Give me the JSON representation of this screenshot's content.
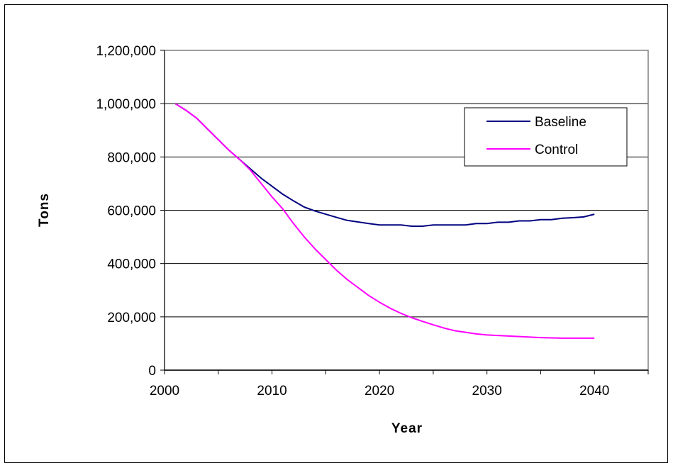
{
  "chart_data": {
    "type": "line",
    "title": "",
    "xlabel": "Year",
    "ylabel": "Tons",
    "xlim": [
      2000,
      2045
    ],
    "ylim": [
      0,
      1200000
    ],
    "x_ticks": [
      2000,
      2010,
      2020,
      2030,
      2040
    ],
    "x_tick_labels": [
      "2000",
      "2010",
      "2020",
      "2030",
      "2040"
    ],
    "y_ticks": [
      0,
      200000,
      400000,
      600000,
      800000,
      1000000,
      1200000
    ],
    "y_tick_labels": [
      "0",
      "200,000",
      "400,000",
      "600,000",
      "800,000",
      "1,000,000",
      "1,200,000"
    ],
    "grid": "horizontal",
    "legend_position": "top-right",
    "series": [
      {
        "name": "Baseline",
        "color": "#000080",
        "x": [
          2001,
          2002,
          2003,
          2004,
          2005,
          2006,
          2007,
          2008,
          2009,
          2010,
          2011,
          2012,
          2013,
          2014,
          2015,
          2016,
          2017,
          2018,
          2019,
          2020,
          2021,
          2022,
          2023,
          2024,
          2025,
          2026,
          2027,
          2028,
          2029,
          2030,
          2031,
          2032,
          2033,
          2034,
          2035,
          2036,
          2037,
          2038,
          2039,
          2040
        ],
        "values": [
          1000000,
          975000,
          945000,
          905000,
          865000,
          825000,
          790000,
          755000,
          720000,
          690000,
          660000,
          635000,
          612000,
          597000,
          585000,
          573000,
          562000,
          556000,
          550000,
          545000,
          545000,
          545000,
          540000,
          540000,
          545000,
          545000,
          545000,
          545000,
          550000,
          550000,
          555000,
          555000,
          560000,
          560000,
          565000,
          565000,
          570000,
          572000,
          575000,
          585000
        ]
      },
      {
        "name": "Control",
        "color": "#FF00FF",
        "x": [
          2001,
          2002,
          2003,
          2004,
          2005,
          2006,
          2007,
          2008,
          2009,
          2010,
          2011,
          2012,
          2013,
          2014,
          2015,
          2016,
          2017,
          2018,
          2019,
          2020,
          2021,
          2022,
          2023,
          2024,
          2025,
          2026,
          2027,
          2028,
          2029,
          2030,
          2031,
          2032,
          2033,
          2034,
          2035,
          2036,
          2037,
          2038,
          2039,
          2040
        ],
        "values": [
          1000000,
          975000,
          945000,
          905000,
          865000,
          825000,
          790000,
          750000,
          700000,
          650000,
          605000,
          550000,
          500000,
          455000,
          415000,
          375000,
          340000,
          310000,
          280000,
          255000,
          232000,
          213000,
          197000,
          183000,
          170000,
          158000,
          148000,
          142000,
          136000,
          132000,
          130000,
          128000,
          126000,
          124000,
          122000,
          121000,
          120000,
          120000,
          120000,
          120000
        ]
      }
    ]
  }
}
